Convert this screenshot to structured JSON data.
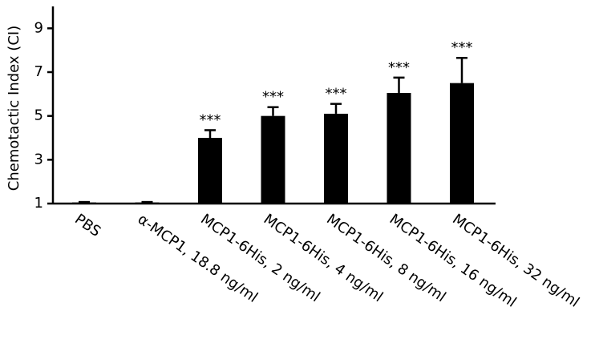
{
  "chart_data": {
    "type": "bar",
    "y_label": "Chemotactic Index (CI)",
    "categories": [
      "PBS",
      "α-MCP1, 18.8 ng/ml",
      "MCP1-6His, 2 ng/ml",
      "MCP1-6His, 4 ng/ml",
      "MCP1-6His, 8 ng/ml",
      "MCP1-6His, 16 ng/ml",
      "MCP1-6His, 32 ng/ml"
    ],
    "values": [
      1.05,
      1.05,
      4.0,
      5.0,
      5.1,
      6.05,
      6.5
    ],
    "errors": [
      0.02,
      0.02,
      0.35,
      0.4,
      0.45,
      0.7,
      1.15
    ],
    "annotations": [
      null,
      null,
      "***",
      "***",
      "***",
      "***",
      "***"
    ],
    "color": "#000000",
    "ylim": [
      1,
      10
    ],
    "yticks": [
      1,
      3,
      5,
      7,
      9
    ]
  }
}
